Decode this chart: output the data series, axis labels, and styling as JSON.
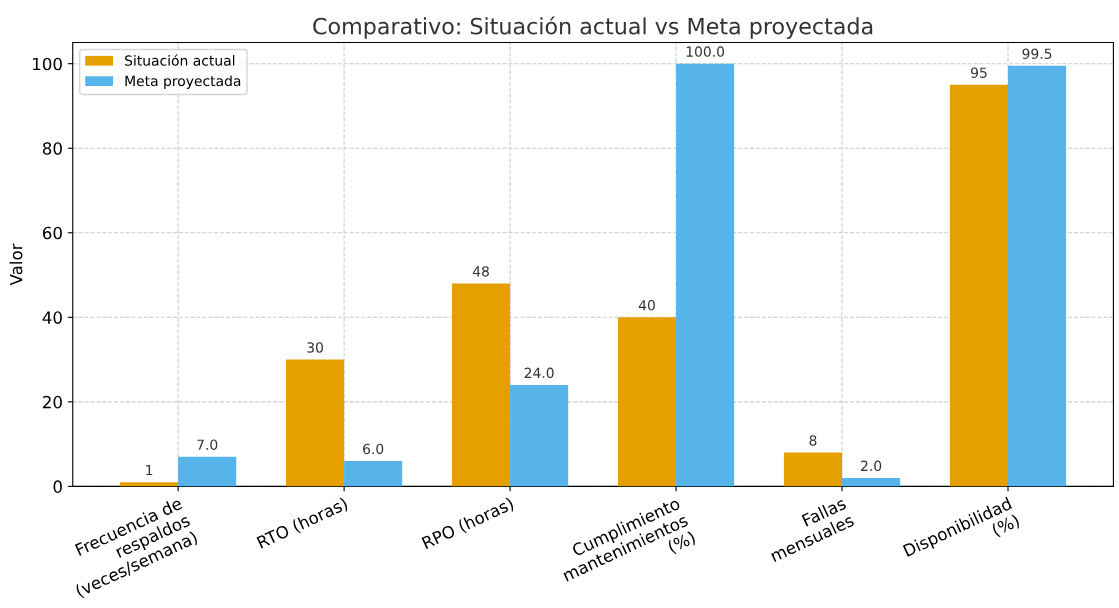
{
  "chart_data": {
    "type": "bar",
    "title": "Comparativo: Situación actual vs Meta proyectada",
    "ylabel": "Valor",
    "categories": [
      "Frecuencia de\nrespaldos\n(veces/semana)",
      "RTO (horas)",
      "RPO (horas)",
      "Cumplimiento\nmantenimientos\n(%)",
      "Fallas\nmensuales",
      "Disponibilidad\n(%)"
    ],
    "series": [
      {
        "name": "Situación actual",
        "color": "#e69f00",
        "values": [
          1,
          30,
          48,
          40,
          8,
          95
        ],
        "value_labels": [
          "1",
          "30",
          "48",
          "40",
          "8",
          "95"
        ]
      },
      {
        "name": "Meta proyectada",
        "color": "#56b4e9",
        "values": [
          7,
          6,
          24,
          100,
          2,
          99.5
        ],
        "value_labels": [
          "7.0",
          "6.0",
          "24.0",
          "100.0",
          "2.0",
          "99.5"
        ]
      }
    ],
    "ylim": [
      0,
      105
    ],
    "yticks": [
      0,
      20,
      40,
      60,
      80,
      100
    ],
    "grid": true,
    "legend": "top left"
  }
}
